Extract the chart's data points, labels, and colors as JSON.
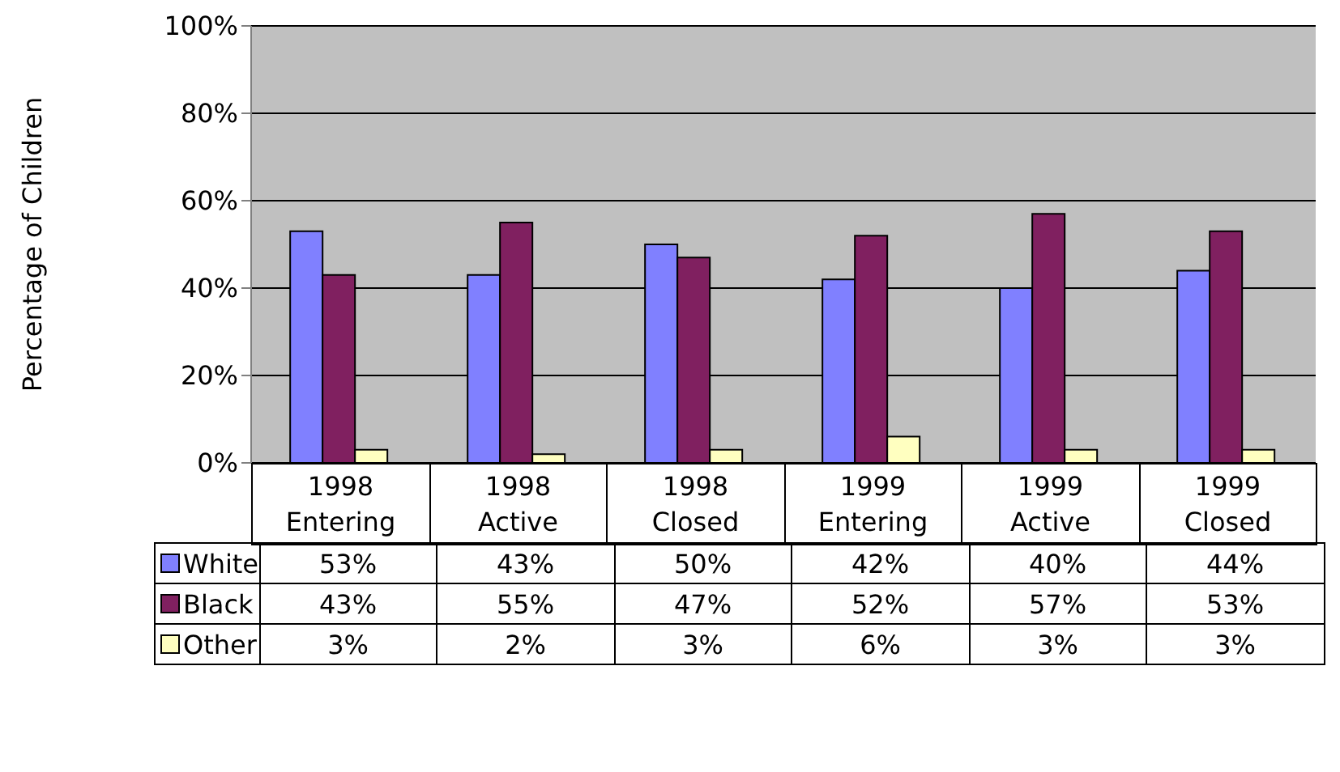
{
  "chart_data": {
    "type": "bar",
    "ylabel": "Percentage of Children",
    "categories": [
      "1998 Entering",
      "1998 Active",
      "1998 Closed",
      "1999 Entering",
      "1999 Active",
      "1999 Closed"
    ],
    "series": [
      {
        "name": "White",
        "color": "#8080ff",
        "values": [
          53,
          43,
          50,
          42,
          40,
          44
        ],
        "value_labels": [
          "53%",
          "43%",
          "50%",
          "42%",
          "40%",
          "44%"
        ]
      },
      {
        "name": "Black",
        "color": "#802060",
        "values": [
          43,
          55,
          47,
          52,
          57,
          53
        ],
        "value_labels": [
          "43%",
          "55%",
          "47%",
          "52%",
          "57%",
          "53%"
        ]
      },
      {
        "name": "Other",
        "color": "#ffffc0",
        "values": [
          3,
          2,
          3,
          6,
          3,
          3
        ],
        "value_labels": [
          "3%",
          "2%",
          "3%",
          "6%",
          "3%",
          "3%"
        ]
      }
    ],
    "ylim": [
      0,
      100
    ],
    "yticks": [
      {
        "value": 0,
        "label": "0%"
      },
      {
        "value": 20,
        "label": "20%"
      },
      {
        "value": 40,
        "label": "40%"
      },
      {
        "value": 60,
        "label": "60%"
      },
      {
        "value": 80,
        "label": "80%"
      },
      {
        "value": 100,
        "label": "100%"
      }
    ],
    "grid": "y",
    "legend": "bottom left"
  }
}
